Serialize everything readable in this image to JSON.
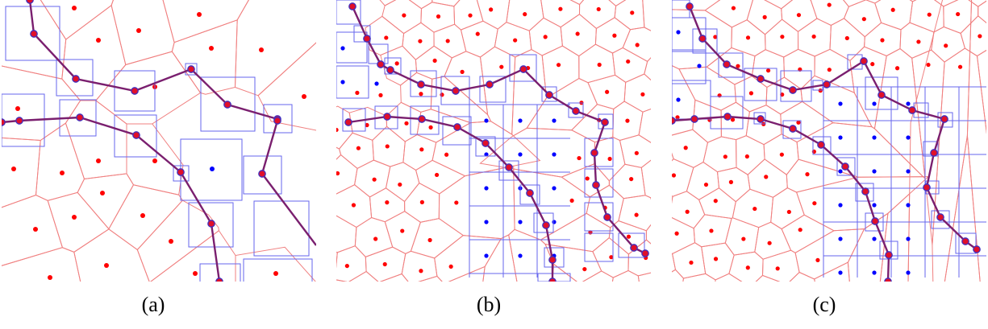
{
  "figure": {
    "panels": [
      {
        "id": "a",
        "caption": "(a)"
      },
      {
        "id": "b",
        "caption": "(b)"
      },
      {
        "id": "c",
        "caption": "(c)"
      }
    ]
  },
  "colors": {
    "voronoi_edge": "#f08080",
    "site_dot": "#ff0000",
    "quadtree_box": "#6666ee",
    "interior_dot": "#0000ff",
    "curve": "#7a1f6f",
    "curve_vertex_fill": "#e0102a",
    "curve_vertex_stroke": "#4030c0"
  }
}
